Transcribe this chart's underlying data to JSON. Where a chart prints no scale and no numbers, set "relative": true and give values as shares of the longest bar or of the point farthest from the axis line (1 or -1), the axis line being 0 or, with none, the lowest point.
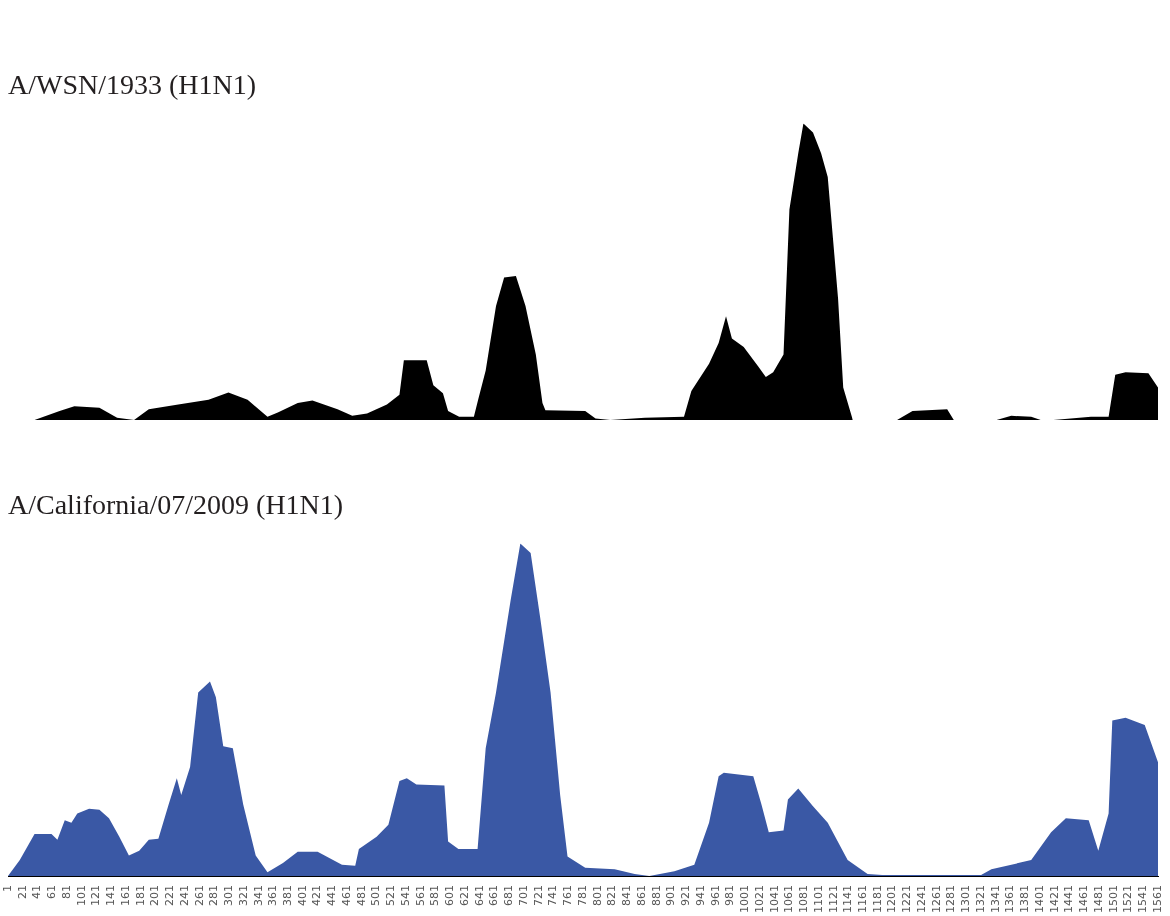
{
  "chart_data": [
    {
      "type": "area",
      "title": "A/WSN/1933 (H1N1)",
      "relative": true,
      "tick_labels": false,
      "grid": false,
      "legend": false,
      "xlim": [
        1,
        1561
      ],
      "xticks": [
        1,
        21,
        41,
        61,
        81,
        101,
        121,
        141,
        161,
        181,
        201,
        221,
        241,
        261,
        281,
        301,
        321,
        341,
        361,
        381,
        401,
        421,
        441,
        461,
        481,
        501,
        521,
        541,
        561,
        581,
        601,
        621,
        641,
        661,
        681,
        701,
        721,
        741,
        761,
        781,
        801,
        821,
        841,
        861,
        881,
        901,
        921,
        941,
        961,
        981,
        1001,
        1021,
        1041,
        1061,
        1081,
        1101,
        1121,
        1141,
        1161,
        1181,
        1201,
        1221,
        1241,
        1261,
        1281,
        1301,
        1321,
        1341,
        1361,
        1381,
        1401,
        1421,
        1441,
        1461,
        1481,
        1501,
        1521,
        1541,
        1561
      ],
      "x": [
        37,
        71,
        91,
        125,
        149,
        172,
        192,
        232,
        273,
        300,
        326,
        353,
        367,
        394,
        414,
        448,
        468,
        488,
        515,
        532,
        538,
        569,
        578,
        591,
        598,
        613,
        633,
        639,
        649,
        663,
        674,
        690,
        703,
        717,
        726,
        730,
        784,
        798,
        818,
        865,
        918,
        928,
        952,
        965,
        975,
        983,
        999,
        1019,
        1029,
        1039,
        1053,
        1061,
        1073,
        1080,
        1093,
        1104,
        1113,
        1127,
        1134,
        1147,
        1170,
        1207,
        1228,
        1275,
        1284,
        1342,
        1362,
        1389,
        1402,
        1408,
        1419,
        1470,
        1494,
        1503,
        1517,
        1548,
        1561
      ],
      "series": [
        {
          "color": "#000000",
          "values": [
            0,
            0.03,
            0.046,
            0.041,
            0.008,
            0,
            0.036,
            0.052,
            0.068,
            0.093,
            0.068,
            0.011,
            0.025,
            0.057,
            0.066,
            0.036,
            0.014,
            0.022,
            0.052,
            0.085,
            0.202,
            0.202,
            0.117,
            0.09,
            0.03,
            0.011,
            0.011,
            0.071,
            0.167,
            0.385,
            0.481,
            0.486,
            0.385,
            0.221,
            0.057,
            0.033,
            0.03,
            0.005,
            0,
            0.008,
            0.011,
            0.098,
            0.19,
            0.26,
            0.35,
            0.275,
            0.246,
            0.18,
            0.145,
            0.161,
            0.221,
            0.71,
            0.9,
            1,
            0.97,
            0.9,
            0.82,
            0.41,
            0.11,
            0,
            null,
            0,
            0.03,
            0.036,
            0,
            0,
            0.014,
            0.011,
            0,
            null,
            0,
            0.011,
            0.011,
            0.153,
            0.161,
            0.158,
            0.11
          ]
        }
      ]
    },
    {
      "type": "area",
      "title": "A/California/07/2009 (H1N1)",
      "relative": true,
      "grid": false,
      "legend": false,
      "xlim": [
        1,
        1561
      ],
      "xticks": [
        1,
        21,
        41,
        61,
        81,
        101,
        121,
        141,
        161,
        181,
        201,
        221,
        241,
        261,
        281,
        301,
        321,
        341,
        361,
        381,
        401,
        421,
        441,
        461,
        481,
        501,
        521,
        541,
        561,
        581,
        601,
        621,
        641,
        661,
        681,
        701,
        721,
        741,
        761,
        781,
        801,
        821,
        841,
        861,
        881,
        901,
        921,
        941,
        961,
        981,
        1001,
        1021,
        1041,
        1061,
        1081,
        1101,
        1121,
        1141,
        1161,
        1181,
        1201,
        1221,
        1241,
        1261,
        1281,
        1301,
        1321,
        1341,
        1361,
        1381,
        1401,
        1421,
        1441,
        1461,
        1481,
        1501,
        1521,
        1541,
        1561
      ],
      "x": [
        1,
        17,
        37,
        60,
        68,
        78,
        87,
        95,
        111,
        125,
        138,
        152,
        165,
        179,
        192,
        205,
        219,
        230,
        236,
        248,
        259,
        275,
        283,
        293,
        306,
        320,
        337,
        353,
        374,
        394,
        421,
        454,
        472,
        477,
        501,
        517,
        532,
        542,
        555,
        593,
        598,
        612,
        638,
        649,
        663,
        683,
        696,
        710,
        723,
        737,
        750,
        760,
        784,
        824,
        851,
        871,
        905,
        932,
        952,
        965,
        972,
        1012,
        1023,
        1033,
        1053,
        1059,
        1073,
        1093,
        1113,
        1140,
        1167,
        1187,
        1321,
        1335,
        1389,
        1416,
        1436,
        1467,
        1480,
        1494,
        1499,
        1517,
        1543,
        1561
      ],
      "series": [
        {
          "color": "#3a58a5",
          "values": [
            0,
            0.048,
            0.126,
            0.126,
            0.109,
            0.168,
            0.16,
            0.188,
            0.202,
            0.199,
            0.174,
            0.118,
            0.062,
            0.076,
            0.109,
            0.112,
            0.216,
            0.294,
            0.244,
            0.328,
            0.552,
            0.585,
            0.538,
            0.39,
            0.384,
            0.216,
            0.062,
            0.011,
            0.039,
            0.073,
            0.073,
            0.034,
            0.031,
            0.081,
            0.118,
            0.154,
            0.286,
            0.294,
            0.275,
            0.272,
            0.104,
            0.081,
            0.081,
            0.384,
            0.552,
            0.832,
            1,
            0.972,
            0.776,
            0.552,
            0.244,
            0.059,
            0.025,
            0.02,
            0.006,
            0,
            0.014,
            0.034,
            0.16,
            0.3,
            0.311,
            0.3,
            0.216,
            0.132,
            0.137,
            0.23,
            0.263,
            0.21,
            0.16,
            0.048,
            0.006,
            0.003,
            0.003,
            0.02,
            0.048,
            0.132,
            0.174,
            0.168,
            0.076,
            0.188,
            0.468,
            0.476,
            0.454,
            0.342
          ]
        }
      ]
    }
  ]
}
